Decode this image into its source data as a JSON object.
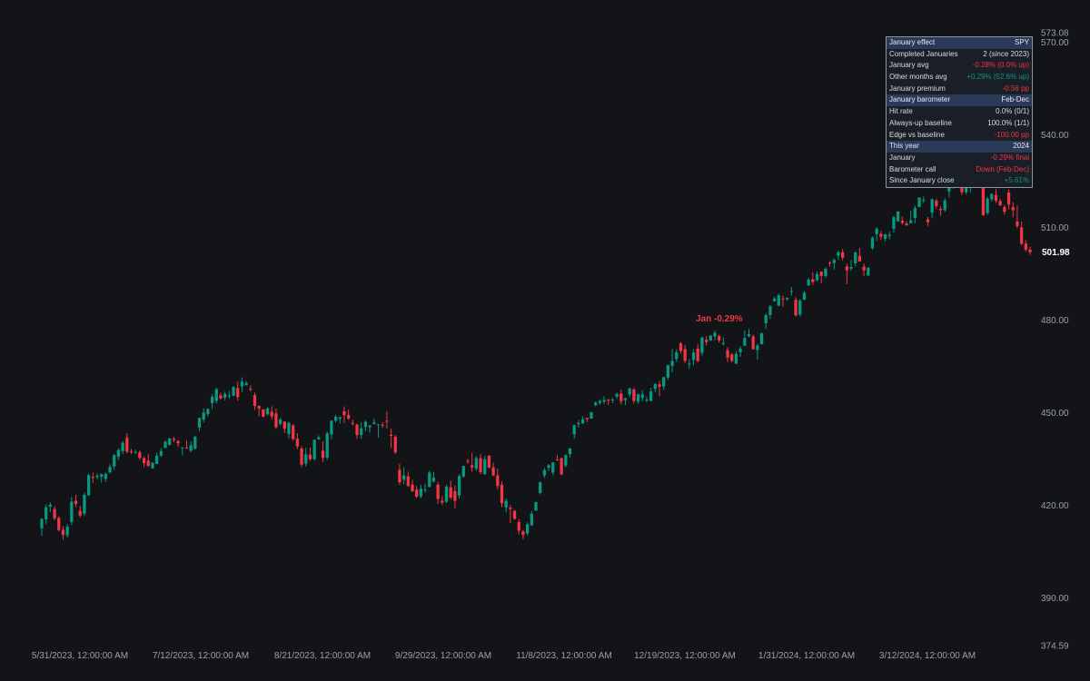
{
  "chart_data": {
    "type": "candlestick",
    "ylim": [
      374.59,
      573.08
    ],
    "y_ticks": [
      390,
      420,
      450,
      480,
      510,
      540,
      570
    ],
    "y_range_labels": [
      "573.08",
      "374.59"
    ],
    "x_tick_labels": [
      "5/31/2023, 12:00:00 AM",
      "7/12/2023, 12:00:00 AM",
      "8/21/2023, 12:00:00 AM",
      "9/29/2023, 12:00:00 AM",
      "11/8/2023, 12:00:00 AM",
      "12/19/2023, 12:00:00 AM",
      "1/31/2024, 12:00:00 AM",
      "3/12/2024, 12:00:00 AM"
    ],
    "last_price": "501.98",
    "annotation": "Jan -0.29%",
    "colors": {
      "up": "#089981",
      "down": "#f23645"
    },
    "candles": [
      [
        412.6,
        415.9,
        410.1,
        415.6
      ],
      [
        415.5,
        420.3,
        414.0,
        419.4
      ],
      [
        419.6,
        421.0,
        417.8,
        420.2
      ],
      [
        418.8,
        419.8,
        415.2,
        415.8
      ],
      [
        415.9,
        416.5,
        411.6,
        412.0
      ],
      [
        412.1,
        413.3,
        408.9,
        410.4
      ],
      [
        410.3,
        413.9,
        409.6,
        413.1
      ],
      [
        414.6,
        422.7,
        413.6,
        421.2
      ],
      [
        421.5,
        423.4,
        419.4,
        420.4
      ],
      [
        418.2,
        419.9,
        416.1,
        416.7
      ],
      [
        417.3,
        424.1,
        416.5,
        423.4
      ],
      [
        423.3,
        430.3,
        423.0,
        429.8
      ],
      [
        429.2,
        430.6,
        427.3,
        429.1
      ],
      [
        429.2,
        430.3,
        428.4,
        429.6
      ],
      [
        429.3,
        430.3,
        427.4,
        430.1
      ],
      [
        428.6,
        430.6,
        427.5,
        430.1
      ],
      [
        430.7,
        433.3,
        430.3,
        432.5
      ],
      [
        432.6,
        436.6,
        431.5,
        436.3
      ],
      [
        435.8,
        438.5,
        434.8,
        437.9
      ],
      [
        437.6,
        440.8,
        436.6,
        440.3
      ],
      [
        441.9,
        443.4,
        436.8,
        437.4
      ],
      [
        437.5,
        438.3,
        436.6,
        437.3
      ],
      [
        437.2,
        438.0,
        436.6,
        437.3
      ],
      [
        437.2,
        437.8,
        434.8,
        435.4
      ],
      [
        435.3,
        435.9,
        432.4,
        433.7
      ],
      [
        434.5,
        436.5,
        432.4,
        432.8
      ],
      [
        432.0,
        434.1,
        432.0,
        433.8
      ],
      [
        433.4,
        437.1,
        433.4,
        436.1
      ],
      [
        436.1,
        438.6,
        435.7,
        437.6
      ],
      [
        438.6,
        440.9,
        438.5,
        440.6
      ],
      [
        439.6,
        442.0,
        439.4,
        441.6
      ],
      [
        441.6,
        442.3,
        440.4,
        441.2
      ],
      [
        440.8,
        441.3,
        438.9,
        440.1
      ],
      [
        438.5,
        438.8,
        436.3,
        438.8
      ],
      [
        438.7,
        441.1,
        438.3,
        438.4
      ],
      [
        437.7,
        440.8,
        437.2,
        439.5
      ],
      [
        438.4,
        442.6,
        438.0,
        442.2
      ],
      [
        445.2,
        448.4,
        444.0,
        448.3
      ],
      [
        447.8,
        451.4,
        446.9,
        450.1
      ],
      [
        449.6,
        451.4,
        448.8,
        451.2
      ],
      [
        453.1,
        456.0,
        451.3,
        455.2
      ],
      [
        453.8,
        458.1,
        453.0,
        457.6
      ],
      [
        455.6,
        456.5,
        454.3,
        454.6
      ],
      [
        454.9,
        456.8,
        454.0,
        456.1
      ],
      [
        455.4,
        457.1,
        454.6,
        455.6
      ],
      [
        455.5,
        458.5,
        455.4,
        458.4
      ],
      [
        458.0,
        460.0,
        453.9,
        455.1
      ],
      [
        458.5,
        461.5,
        456.7,
        460.1
      ],
      [
        458.9,
        460.3,
        458.9,
        459.6
      ],
      [
        457.8,
        458.8,
        456.9,
        457.6
      ],
      [
        455.7,
        456.5,
        450.9,
        452.2
      ],
      [
        452.2,
        452.4,
        448.8,
        451.3
      ],
      [
        451.1,
        451.1,
        448.5,
        448.7
      ],
      [
        449.5,
        451.8,
        449.1,
        451.4
      ],
      [
        450.3,
        452.1,
        447.7,
        448.8
      ],
      [
        449.8,
        451.4,
        444.8,
        445.3
      ],
      [
        446.4,
        448.4,
        445.9,
        447.8
      ],
      [
        447.1,
        447.2,
        443.4,
        444.8
      ],
      [
        443.1,
        447.1,
        441.6,
        446.7
      ],
      [
        445.9,
        446.4,
        441.0,
        441.5
      ],
      [
        441.6,
        443.4,
        438.2,
        439.1
      ],
      [
        438.4,
        439.2,
        432.4,
        433.2
      ],
      [
        433.5,
        438.7,
        432.6,
        436.5
      ],
      [
        436.4,
        438.7,
        434.4,
        435.0
      ],
      [
        435.0,
        441.3,
        434.4,
        441.2
      ],
      [
        441.4,
        442.7,
        441.4,
        442.0
      ],
      [
        437.7,
        440.8,
        434.0,
        435.4
      ],
      [
        435.5,
        443.9,
        434.7,
        443.3
      ],
      [
        443.0,
        447.5,
        441.5,
        447.4
      ],
      [
        447.4,
        449.3,
        446.9,
        448.7
      ],
      [
        448.0,
        448.8,
        446.5,
        448.5
      ],
      [
        450.5,
        452.1,
        446.7,
        449.2
      ],
      [
        449.3,
        451.1,
        447.7,
        448.1
      ],
      [
        446.7,
        447.8,
        445.8,
        446.4
      ],
      [
        446.2,
        446.4,
        441.5,
        442.8
      ],
      [
        442.8,
        446.9,
        441.5,
        444.9
      ],
      [
        445.4,
        447.5,
        444.0,
        447.1
      ],
      [
        445.3,
        446.0,
        443.6,
        445.9
      ],
      [
        446.3,
        448.2,
        446.3,
        446.8
      ],
      [
        446.1,
        446.3,
        441.9,
        446.3
      ],
      [
        446.1,
        446.9,
        445.1,
        446.0
      ],
      [
        447.4,
        450.4,
        444.9,
        447.2
      ],
      [
        442.9,
        444.8,
        438.6,
        442.5
      ],
      [
        442.2,
        442.8,
        436.6,
        437.2
      ],
      [
        431.5,
        433.4,
        426.7,
        427.5
      ],
      [
        428.3,
        432.3,
        426.8,
        429.7
      ],
      [
        429.4,
        430.9,
        426.0,
        426.3
      ],
      [
        426.7,
        428.3,
        424.5,
        424.5
      ],
      [
        425.1,
        426.3,
        422.4,
        422.8
      ],
      [
        422.9,
        426.7,
        422.2,
        425.4
      ],
      [
        425.1,
        427.0,
        424.1,
        425.1
      ],
      [
        426.0,
        431.2,
        425.8,
        430.6
      ],
      [
        427.7,
        430.8,
        427.4,
        429.0
      ],
      [
        426.7,
        427.6,
        420.5,
        422.1
      ],
      [
        421.5,
        423.0,
        420.1,
        420.9
      ],
      [
        421.2,
        426.7,
        420.7,
        426.1
      ],
      [
        425.9,
        428.1,
        421.9,
        422.5
      ],
      [
        424.6,
        426.5,
        419.1,
        421.5
      ],
      [
        423.2,
        430.1,
        422.1,
        429.5
      ],
      [
        429.4,
        432.8,
        428.9,
        432.8
      ],
      [
        434.4,
        435.2,
        433.5,
        434.2
      ],
      [
        433.0,
        437.0,
        430.9,
        432.3
      ],
      [
        431.9,
        436.0,
        431.2,
        435.3
      ],
      [
        435.3,
        436.6,
        430.1,
        430.8
      ],
      [
        430.1,
        436.0,
        429.9,
        434.9
      ],
      [
        436.1,
        436.3,
        432.0,
        432.2
      ],
      [
        432.3,
        433.8,
        429.5,
        429.7
      ],
      [
        429.7,
        432.0,
        425.2,
        426.3
      ],
      [
        426.7,
        427.8,
        419.4,
        420.7
      ],
      [
        419.3,
        422.3,
        417.8,
        421.5
      ],
      [
        419.2,
        420.1,
        414.3,
        418.8
      ],
      [
        418.2,
        418.6,
        415.4,
        415.6
      ],
      [
        414.6,
        415.6,
        410.6,
        411.8
      ],
      [
        411.6,
        412.1,
        409.0,
        410.4
      ],
      [
        410.9,
        414.5,
        410.2,
        413.9
      ],
      [
        413.5,
        418.2,
        413.4,
        417.3
      ],
      [
        418.3,
        421.0,
        418.3,
        421.1
      ],
      [
        424.0,
        427.7,
        423.5,
        427.5
      ],
      [
        429.7,
        432.2,
        428.9,
        431.4
      ],
      [
        432.2,
        433.4,
        431.2,
        433.0
      ],
      [
        430.6,
        434.0,
        429.7,
        433.9
      ],
      [
        434.8,
        436.4,
        434.5,
        434.7
      ],
      [
        435.3,
        435.4,
        429.7,
        430.0
      ],
      [
        432.9,
        436.3,
        432.3,
        436.3
      ],
      [
        436.6,
        438.6,
        435.5,
        438.4
      ],
      [
        443.0,
        446.0,
        441.6,
        446.0
      ],
      [
        446.3,
        447.6,
        445.2,
        446.7
      ],
      [
        446.6,
        448.9,
        446.3,
        447.9
      ],
      [
        448.3,
        448.4,
        446.9,
        447.9
      ],
      [
        448.1,
        450.2,
        448.1,
        450.2
      ],
      [
        452.4,
        453.7,
        452.2,
        453.3
      ],
      [
        453.2,
        454.4,
        452.6,
        453.8
      ],
      [
        453.6,
        455.4,
        452.8,
        454.1
      ],
      [
        454.2,
        454.5,
        452.5,
        453.9
      ],
      [
        454.0,
        454.8,
        453.1,
        454.3
      ],
      [
        455.2,
        456.5,
        454.5,
        456.1
      ],
      [
        456.2,
        457.5,
        452.7,
        453.7
      ],
      [
        454.1,
        454.9,
        452.5,
        454.7
      ],
      [
        455.9,
        458.1,
        455.0,
        457.9
      ],
      [
        457.5,
        458.2,
        453.0,
        453.8
      ],
      [
        453.6,
        456.1,
        452.9,
        456.0
      ],
      [
        454.8,
        457.3,
        453.8,
        455.9
      ],
      [
        454.3,
        455.2,
        453.4,
        454.3
      ],
      [
        453.8,
        458.1,
        453.7,
        456.9
      ],
      [
        457.7,
        459.5,
        456.6,
        459.3
      ],
      [
        459.2,
        460.3,
        455.3,
        458.4
      ],
      [
        458.5,
        461.6,
        457.4,
        461.5
      ],
      [
        461.4,
        465.4,
        460.6,
        465.4
      ],
      [
        465.2,
        470.6,
        463.1,
        466.7
      ],
      [
        467.4,
        470.6,
        466.5,
        469.6
      ],
      [
        472.5,
        472.9,
        469.1,
        470.0
      ],
      [
        470.6,
        472.0,
        466.1,
        466.8
      ],
      [
        465.8,
        467.4,
        464.2,
        465.9
      ],
      [
        467.1,
        470.6,
        465.4,
        469.5
      ],
      [
        470.8,
        472.2,
        466.3,
        466.8
      ],
      [
        469.4,
        474.5,
        468.5,
        474.4
      ],
      [
        473.6,
        474.8,
        471.8,
        472.9
      ],
      [
        473.4,
        475.1,
        473.3,
        475.0
      ],
      [
        474.7,
        476.6,
        473.4,
        475.9
      ],
      [
        474.8,
        475.3,
        472.7,
        473.4
      ],
      [
        472.3,
        474.4,
        471.8,
        472.6
      ],
      [
        470.3,
        471.2,
        466.4,
        467.9
      ],
      [
        468.9,
        469.4,
        466.3,
        466.8
      ],
      [
        465.9,
        470.0,
        465.8,
        469.1
      ],
      [
        469.6,
        471.5,
        468.1,
        470.8
      ],
      [
        471.7,
        476.7,
        471.6,
        474.2
      ],
      [
        474.8,
        477.1,
        474.4,
        475.5
      ],
      [
        474.7,
        475.3,
        470.4,
        470.6
      ],
      [
        470.3,
        472.4,
        467.2,
        471.8
      ],
      [
        472.2,
        476.0,
        472.1,
        475.7
      ],
      [
        479.0,
        482.1,
        477.2,
        481.6
      ],
      [
        481.7,
        484.9,
        480.4,
        484.5
      ],
      [
        486.1,
        487.6,
        486.0,
        487.0
      ],
      [
        484.7,
        488.6,
        484.4,
        488.0
      ],
      [
        487.0,
        487.9,
        484.4,
        486.9
      ],
      [
        486.8,
        487.4,
        486.2,
        487.2
      ],
      [
        489.2,
        490.7,
        488.0,
        489.4
      ],
      [
        486.6,
        487.4,
        481.2,
        481.5
      ],
      [
        481.8,
        486.8,
        481.2,
        486.3
      ],
      [
        486.6,
        489.4,
        486.5,
        488.9
      ],
      [
        491.2,
        493.7,
        491.1,
        493.1
      ],
      [
        493.2,
        495.4,
        491.4,
        492.3
      ],
      [
        492.9,
        495.7,
        492.5,
        494.9
      ],
      [
        495.7,
        495.7,
        492.0,
        494.3
      ],
      [
        494.2,
        497.1,
        493.8,
        496.6
      ],
      [
        498.6,
        499.1,
        497.3,
        498.4
      ],
      [
        498.5,
        500.0,
        496.3,
        499.5
      ],
      [
        500.9,
        502.5,
        499.5,
        502.0
      ],
      [
        502.0,
        503.0,
        499.3,
        500.2
      ],
      [
        497.4,
        498.3,
        491.6,
        496.1
      ],
      [
        496.7,
        499.5,
        496.0,
        497.2
      ],
      [
        498.4,
        502.2,
        497.3,
        501.9
      ],
      [
        500.8,
        503.4,
        498.9,
        499.0
      ],
      [
        497.3,
        498.3,
        494.3,
        496.1
      ],
      [
        494.4,
        497.2,
        494.4,
        496.9
      ],
      [
        503.3,
        507.1,
        502.8,
        506.7
      ],
      [
        507.8,
        510.1,
        505.6,
        509.6
      ],
      [
        507.9,
        508.8,
        506.0,
        507.0
      ],
      [
        506.4,
        507.9,
        505.5,
        507.8
      ],
      [
        507.2,
        508.7,
        506.2,
        507.6
      ],
      [
        509.6,
        513.8,
        508.4,
        513.3
      ],
      [
        512.0,
        515.3,
        511.8,
        515.2
      ],
      [
        512.2,
        513.6,
        510.9,
        511.5
      ],
      [
        511.3,
        512.0,
        510.5,
        510.7
      ],
      [
        511.4,
        515.4,
        511.3,
        512.3
      ],
      [
        513.1,
        517.1,
        511.4,
        516.3
      ],
      [
        516.6,
        519.7,
        516.6,
        519.7
      ],
      [
        518.6,
        520.0,
        518.0,
        518.9
      ],
      [
        512.6,
        513.4,
        510.5,
        511.7
      ],
      [
        514.8,
        519.3,
        513.0,
        519.2
      ],
      [
        518.7,
        519.2,
        516.1,
        516.9
      ],
      [
        516.0,
        516.9,
        513.8,
        515.6
      ],
      [
        515.6,
        519.5,
        515.1,
        518.8
      ],
      [
        521.7,
        526.1,
        519.8,
        526.0
      ],
      [
        523.8,
        524.3,
        522.6,
        523.7
      ],
      [
        524.0,
        526.1,
        523.9,
        524.6
      ],
      [
        523.8,
        524.5,
        520.5,
        521.4
      ],
      [
        521.4,
        524.3,
        520.7,
        523.5
      ],
      [
        523.2,
        525.0,
        521.4,
        524.4
      ],
      [
        524.8,
        526.1,
        524.7,
        525.5
      ],
      [
        525.8,
        526.3,
        524.2,
        524.3
      ],
      [
        526.0,
        526.8,
        513.8,
        514.0
      ],
      [
        514.6,
        520.0,
        514.1,
        519.4
      ],
      [
        519.1,
        521.1,
        518.4,
        520.8
      ],
      [
        520.5,
        522.6,
        518.0,
        518.6
      ],
      [
        518.6,
        519.3,
        516.9,
        517.2
      ],
      [
        516.6,
        517.3,
        514.2,
        515.1
      ],
      [
        521.3,
        522.2,
        515.8,
        517.4
      ],
      [
        516.6,
        518.2,
        513.3,
        515.6
      ],
      [
        511.9,
        517.1,
        509.8,
        510.4
      ],
      [
        510.0,
        511.9,
        504.3,
        504.7
      ],
      [
        504.8,
        505.9,
        502.3,
        502.8
      ],
      [
        502.8,
        503.8,
        501.1,
        501.98
      ]
    ]
  },
  "stats": {
    "rows": [
      {
        "label": "January effect",
        "value": "SPY",
        "type": "head"
      },
      {
        "label": "Completed Januaries",
        "value": "2 (since 2023)",
        "type": "plain"
      },
      {
        "label": "January avg",
        "value": "-0.28% (0.0% up)",
        "type": "down"
      },
      {
        "label": "Other months avg",
        "value": "+0.29% (52.6% up)",
        "type": "up"
      },
      {
        "label": "January premium",
        "value": "-0.56 pp",
        "type": "down"
      },
      {
        "label": "January barometer",
        "value": "Feb-Dec",
        "type": "head"
      },
      {
        "label": "Hit rate",
        "value": "0.0% (0/1)",
        "type": "plain"
      },
      {
        "label": "Always-up baseline",
        "value": "100.0% (1/1)",
        "type": "plain"
      },
      {
        "label": "Edge vs baseline",
        "value": "-100.00 pp",
        "type": "down"
      },
      {
        "label": "This year",
        "value": "2024",
        "type": "head"
      },
      {
        "label": "January",
        "value": "-0.29% final",
        "type": "down"
      },
      {
        "label": "Barometer call",
        "value": "Down (Feb-Dec)",
        "type": "down"
      },
      {
        "label": "Since January close",
        "value": "+5.61%",
        "type": "up"
      }
    ]
  }
}
